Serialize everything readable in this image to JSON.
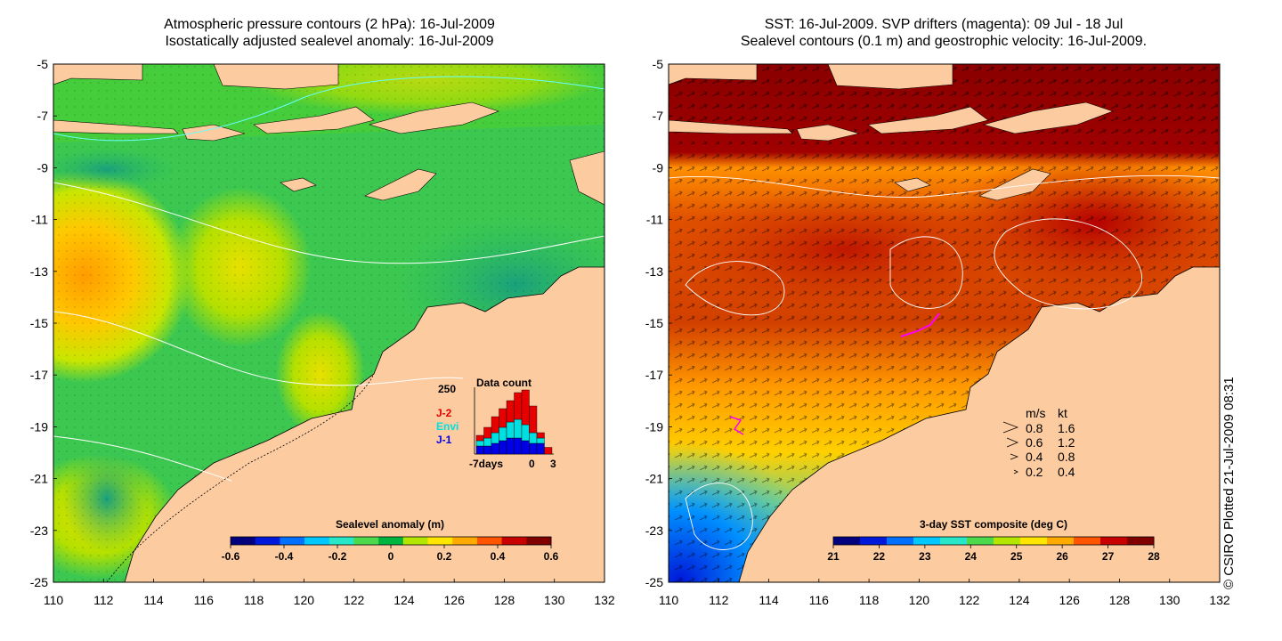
{
  "left_panel": {
    "title_line1": "Atmospheric pressure contours (2 hPa): 16-Jul-2009",
    "title_line2": "Isostatically adjusted sealevel anomaly: 16-Jul-2009",
    "colorbar": {
      "label": "Sealevel anomaly (m)",
      "ticks": [
        "-0.6",
        "-0.4",
        "-0.2",
        "0",
        "0.2",
        "0.4",
        "0.6"
      ],
      "colors": [
        "#00007f",
        "#0018d9",
        "#0070ff",
        "#00c8ff",
        "#28e6c8",
        "#4cd94c",
        "#00b440",
        "#b4e600",
        "#ffe600",
        "#ffaa00",
        "#ff5500",
        "#c80000",
        "#800000"
      ]
    },
    "inset": {
      "title": "Data count",
      "ymax_label": "250",
      "legend": [
        {
          "label": "J-2",
          "color": "#e60000"
        },
        {
          "label": "Envi",
          "color": "#00e0e0"
        },
        {
          "label": "J-1",
          "color": "#0000e6"
        }
      ],
      "xlabel_left": "-7days",
      "xlabel_mid": "0",
      "xlabel_right": "3",
      "chart_data": {
        "type": "bar",
        "title": "Data count",
        "x": [
          -7,
          -6,
          -5,
          -4,
          -3,
          -2,
          -1,
          0,
          1,
          2
        ],
        "series": [
          {
            "name": "J-1",
            "values": [
              30,
              30,
              40,
              50,
              60,
              60,
              50,
              40,
              40,
              0
            ]
          },
          {
            "name": "Envi",
            "values": [
              20,
              30,
              40,
              50,
              60,
              70,
              60,
              40,
              20,
              0
            ]
          },
          {
            "name": "J-2",
            "values": [
              20,
              40,
              60,
              70,
              80,
              100,
              130,
              100,
              20,
              25
            ]
          }
        ],
        "ylim": [
          0,
          250
        ]
      }
    }
  },
  "right_panel": {
    "title_line1": "SST: 16-Jul-2009. SVP drifters (magenta): 09 Jul - 18 Jul",
    "title_line2": "Sealevel contours (0.1 m) and geostrophic velocity: 16-Jul-2009.",
    "colorbar": {
      "label": "3-day SST composite (deg C)",
      "ticks": [
        "21",
        "22",
        "23",
        "24",
        "25",
        "26",
        "27",
        "28"
      ],
      "colors": [
        "#00007f",
        "#0018d9",
        "#0070ff",
        "#00c8ff",
        "#28e6c8",
        "#4cd94c",
        "#b4e600",
        "#ffe600",
        "#ffaa00",
        "#ff5500",
        "#c80000",
        "#800000"
      ]
    },
    "velocity_legend": {
      "header_ms": "m/s",
      "header_kt": "kt",
      "rows": [
        {
          "ms": "0.8",
          "kt": "1.6"
        },
        {
          "ms": "0.6",
          "kt": "1.2"
        },
        {
          "ms": "0.4",
          "kt": "0.8"
        },
        {
          "ms": "0.2",
          "kt": "0.4"
        }
      ]
    }
  },
  "axes": {
    "y_ticks": [
      "-5",
      "-7",
      "-9",
      "-11",
      "-13",
      "-15",
      "-17",
      "-19",
      "-21",
      "-23",
      "-25"
    ],
    "x_ticks": [
      "110",
      "112",
      "114",
      "116",
      "118",
      "120",
      "122",
      "124",
      "126",
      "128",
      "130",
      "132"
    ]
  },
  "credit": "© CSIRO Plotted 21-Jul-2009 08:31",
  "colors": {
    "land": "#fccba0",
    "sea_green": "#3ccd4c",
    "sea_teal": "#22b46a",
    "sst_darkred": "#8a0000",
    "sst_red": "#c62a00",
    "sst_orange": "#ff8000"
  }
}
